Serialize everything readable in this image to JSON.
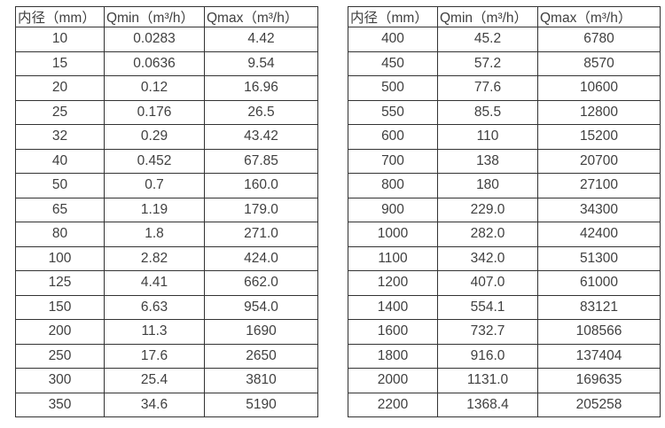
{
  "page": {
    "background": "#ffffff",
    "text_color": "#3f3f3f",
    "border_color": "#333333"
  },
  "tables": [
    {
      "name": "flow-range-small-diameters",
      "headers": [
        "内径（mm）",
        "Qmin（m³/h）",
        "Qmax（m³/h）"
      ],
      "rows": [
        [
          "10",
          "0.0283",
          "4.42"
        ],
        [
          "15",
          "0.0636",
          "9.54"
        ],
        [
          "20",
          "0.12",
          "16.96"
        ],
        [
          "25",
          "0.176",
          "26.5"
        ],
        [
          "32",
          "0.29",
          "43.42"
        ],
        [
          "40",
          "0.452",
          "67.85"
        ],
        [
          "50",
          "0.7",
          "160.0"
        ],
        [
          "65",
          "1.19",
          "179.0"
        ],
        [
          "80",
          "1.8",
          "271.0"
        ],
        [
          "100",
          "2.82",
          "424.0"
        ],
        [
          "125",
          "4.41",
          "662.0"
        ],
        [
          "150",
          "6.63",
          "954.0"
        ],
        [
          "200",
          "11.3",
          "1690"
        ],
        [
          "250",
          "17.6",
          "2650"
        ],
        [
          "300",
          "25.4",
          "3810"
        ],
        [
          "350",
          "34.6",
          "5190"
        ]
      ]
    },
    {
      "name": "flow-range-large-diameters",
      "headers": [
        "内径（mm）",
        "Qmin（m³/h）",
        "Qmax（m³/h）"
      ],
      "rows": [
        [
          "400",
          "45.2",
          "6780"
        ],
        [
          "450",
          "57.2",
          "8570"
        ],
        [
          "500",
          "77.6",
          "10600"
        ],
        [
          "550",
          "85.5",
          "12800"
        ],
        [
          "600",
          "110",
          "15200"
        ],
        [
          "700",
          "138",
          "20700"
        ],
        [
          "800",
          "180",
          "27100"
        ],
        [
          "900",
          "229.0",
          "34300"
        ],
        [
          "1000",
          "282.0",
          "42400"
        ],
        [
          "1100",
          "342.0",
          "51300"
        ],
        [
          "1200",
          "407.0",
          "61000"
        ],
        [
          "1400",
          "554.1",
          "83121"
        ],
        [
          "1600",
          "732.7",
          "108566"
        ],
        [
          "1800",
          "916.0",
          "137404"
        ],
        [
          "2000",
          "1131.0",
          "169635"
        ],
        [
          "2200",
          "1368.4",
          "205258"
        ]
      ]
    }
  ]
}
